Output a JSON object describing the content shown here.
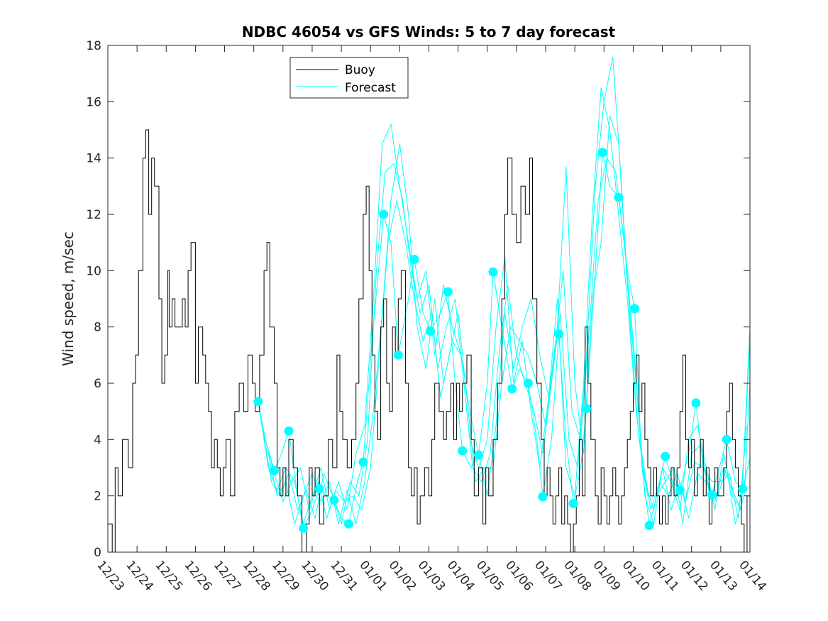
{
  "chart_data": {
    "type": "line",
    "title": "NDBC 46054 vs GFS Winds: 5 to 7 day forecast",
    "xlabel": "",
    "ylabel": "Wind speed, m/sec",
    "xlim_days": [
      0,
      22
    ],
    "ylim": [
      0,
      18
    ],
    "yticks": [
      0,
      2,
      4,
      6,
      8,
      10,
      12,
      14,
      16,
      18
    ],
    "xtick_labels": [
      "12/23",
      "12/24",
      "12/25",
      "12/26",
      "12/27",
      "12/28",
      "12/29",
      "12/30",
      "12/31",
      "01/01",
      "01/02",
      "01/03",
      "01/04",
      "01/05",
      "01/06",
      "01/07",
      "01/08",
      "01/09",
      "01/10",
      "01/11",
      "01/12",
      "01/13",
      "01/14"
    ],
    "legend": {
      "placement": "top-center",
      "entries": [
        "Buoy",
        "Forecast"
      ]
    },
    "colors": {
      "buoy": "#000000",
      "forecast": "#00ffff",
      "markers": "#00ffff"
    },
    "buoy_series": {
      "name": "Buoy",
      "x": [
        0,
        0.15,
        0.25,
        0.35,
        0.5,
        0.7,
        0.85,
        0.95,
        1.05,
        1.2,
        1.3,
        1.4,
        1.5,
        1.6,
        1.75,
        1.85,
        1.95,
        2.05,
        2.1,
        2.2,
        2.3,
        2.4,
        2.55,
        2.65,
        2.75,
        2.85,
        3,
        3.1,
        3.25,
        3.35,
        3.45,
        3.55,
        3.65,
        3.75,
        3.85,
        3.95,
        4.05,
        4.2,
        4.35,
        4.5,
        4.65,
        4.8,
        4.95,
        5.05,
        5.2,
        5.35,
        5.45,
        5.55,
        5.7,
        5.8,
        5.9,
        6,
        6.1,
        6.2,
        6.35,
        6.5,
        6.65,
        6.8,
        6.9,
        7,
        7.1,
        7.25,
        7.4,
        7.55,
        7.7,
        7.85,
        7.95,
        8.05,
        8.2,
        8.35,
        8.5,
        8.6,
        8.75,
        8.85,
        8.95,
        9.05,
        9.15,
        9.25,
        9.35,
        9.45,
        9.55,
        9.65,
        9.75,
        9.85,
        9.95,
        10.05,
        10.2,
        10.3,
        10.4,
        10.5,
        10.6,
        10.7,
        10.85,
        11,
        11.1,
        11.2,
        11.35,
        11.5,
        11.6,
        11.75,
        11.85,
        11.95,
        12.05,
        12.15,
        12.3,
        12.45,
        12.55,
        12.7,
        12.85,
        12.95,
        13.05,
        13.2,
        13.35,
        13.5,
        13.6,
        13.7,
        13.85,
        14,
        14.15,
        14.3,
        14.45,
        14.55,
        14.7,
        14.85,
        14.95,
        15.05,
        15.15,
        15.25,
        15.35,
        15.45,
        15.55,
        15.65,
        15.75,
        15.85,
        15.95,
        16.05,
        16.15,
        16.25,
        16.35,
        16.45,
        16.55,
        16.7,
        16.8,
        16.9,
        17,
        17.1,
        17.2,
        17.3,
        17.4,
        17.5,
        17.6,
        17.7,
        17.8,
        17.9,
        18,
        18.1,
        18.2,
        18.3,
        18.4,
        18.5,
        18.6,
        18.7,
        18.8,
        18.9,
        19,
        19.1,
        19.2,
        19.3,
        19.4,
        19.5,
        19.6,
        19.7,
        19.8,
        19.9,
        20,
        20.1,
        20.2,
        20.3,
        20.4,
        20.5,
        20.6,
        20.7,
        20.8,
        20.9,
        21,
        21.1,
        21.2,
        21.3,
        21.4,
        21.5,
        21.6,
        21.7,
        21.8,
        21.9,
        22
      ],
      "y": [
        1,
        0,
        3,
        2,
        4,
        3,
        6,
        7,
        10,
        14,
        15,
        12,
        14,
        13,
        9,
        6,
        7,
        10,
        8,
        9,
        8,
        8,
        9,
        8,
        10,
        11,
        6,
        8,
        7,
        6,
        5,
        3,
        4,
        3,
        2,
        3,
        4,
        2,
        5,
        6,
        5,
        7,
        6,
        5,
        7,
        10,
        11,
        8,
        6,
        3,
        2,
        3,
        2,
        4,
        3,
        2,
        0,
        1,
        3,
        2,
        3,
        1,
        2,
        4,
        3,
        7,
        5,
        4,
        3,
        4,
        6,
        9,
        12,
        13,
        10,
        7,
        5,
        4,
        8,
        9,
        6,
        5,
        8,
        7,
        9,
        10,
        6,
        3,
        2,
        3,
        1,
        2,
        3,
        2,
        4,
        6,
        5,
        4,
        5,
        6,
        4,
        6,
        5,
        6,
        7,
        4,
        2,
        3,
        1,
        3,
        2,
        4,
        6,
        9,
        12,
        14,
        12,
        11,
        13,
        12,
        14,
        9,
        6,
        4,
        2,
        3,
        2,
        1,
        2,
        3,
        1,
        2,
        1,
        0,
        1,
        2,
        4,
        2,
        8,
        6,
        4,
        2,
        1,
        3,
        2,
        1,
        2,
        3,
        2,
        1,
        2,
        3,
        4,
        5,
        6,
        7,
        5,
        6,
        4,
        3,
        2,
        3,
        2,
        1,
        2,
        1,
        2,
        3,
        2,
        3,
        5,
        7,
        4,
        3,
        4,
        2,
        3,
        4,
        2,
        3,
        1,
        2,
        3,
        2,
        2,
        3,
        5,
        6,
        4,
        3,
        2,
        1,
        0,
        2,
        2
      ]
    },
    "forecast_markers": {
      "x": [
        5.15,
        5.7,
        6.2,
        6.7,
        7.25,
        7.75,
        8.25,
        8.75,
        9.45,
        9.95,
        10.5,
        11.05,
        11.65,
        12.15,
        12.7,
        13.2,
        13.85,
        14.4,
        14.9,
        15.45,
        15.95,
        16.4,
        16.95,
        17.5,
        18.05,
        18.55,
        19.1,
        19.6,
        20.15,
        20.7,
        21.2,
        21.75
      ],
      "y": [
        5.35,
        2.9,
        4.3,
        0.85,
        2.25,
        1.85,
        1.0,
        3.2,
        12.0,
        7.0,
        10.4,
        7.85,
        9.25,
        3.6,
        3.45,
        9.95,
        5.8,
        6.0,
        1.97,
        7.75,
        1.73,
        5.1,
        14.2,
        12.6,
        8.65,
        0.95,
        3.4,
        2.2,
        5.3,
        2.05,
        4.0,
        2.25
      ]
    },
    "forecast_series": [
      {
        "name": "Forecast",
        "x": [
          5.15,
          5.4,
          5.7,
          5.95,
          6.2,
          6.5,
          6.7,
          7.0,
          7.25,
          7.5,
          7.75,
          8.0,
          8.25,
          8.55,
          8.75,
          9.05,
          9.45,
          9.7,
          9.95,
          10.3,
          10.5,
          10.8,
          11.05,
          11.4,
          11.65,
          11.9,
          12.15,
          12.45,
          12.7,
          13.0,
          13.2,
          13.5,
          13.85,
          14.1,
          14.4,
          14.7,
          14.9,
          15.2,
          15.45,
          15.7,
          15.95,
          16.2,
          16.4,
          16.7,
          16.95,
          17.2,
          17.5,
          17.8,
          18.05,
          18.3,
          18.55,
          18.8,
          19.1,
          19.35,
          19.6,
          19.9,
          20.15,
          20.4,
          20.7,
          20.95,
          21.2,
          21.5,
          21.75,
          22.0
        ],
        "y": [
          5.35,
          4.0,
          2.9,
          3.5,
          4.3,
          2.0,
          0.85,
          1.5,
          2.25,
          2.0,
          1.85,
          1.2,
          1.0,
          2.5,
          3.2,
          7.5,
          12.0,
          11.0,
          7.0,
          9.0,
          10.4,
          8.5,
          7.85,
          8.5,
          9.25,
          6.0,
          3.6,
          3.0,
          3.45,
          6.0,
          9.95,
          8.0,
          5.8,
          6.5,
          6.0,
          4.0,
          1.97,
          4.0,
          7.75,
          4.0,
          1.73,
          3.0,
          5.1,
          10.0,
          14.2,
          13.0,
          12.6,
          10.0,
          8.65,
          3.0,
          0.95,
          2.0,
          3.4,
          2.5,
          2.2,
          3.5,
          5.3,
          3.0,
          2.05,
          3.0,
          4.0,
          2.5,
          2.25,
          3.35
        ]
      },
      {
        "name": "Forecast",
        "x": [
          5.2,
          5.5,
          5.8,
          6.1,
          6.4,
          6.7,
          7.0,
          7.3,
          7.6,
          7.9,
          8.2,
          8.5,
          8.8,
          9.1,
          9.4,
          9.7,
          10.0,
          10.3,
          10.6,
          10.9,
          11.2,
          11.5,
          11.8,
          12.1,
          12.4,
          12.7,
          13.0,
          13.3,
          13.6,
          13.9,
          14.2,
          14.5,
          14.8,
          15.1,
          15.4,
          15.7,
          16.0,
          16.3,
          16.6,
          16.9,
          17.2,
          17.5,
          17.8,
          18.1,
          18.4,
          18.7,
          19.0,
          19.3,
          19.6,
          19.9,
          20.2,
          20.5,
          20.8,
          21.1,
          21.4,
          21.7,
          22.0
        ],
        "y": [
          5.0,
          3.0,
          2.2,
          3.0,
          2.5,
          1.0,
          2.0,
          3.0,
          1.5,
          2.5,
          1.5,
          3.5,
          4.5,
          9.0,
          14.5,
          15.2,
          13.0,
          11.0,
          9.0,
          10.0,
          7.0,
          9.5,
          8.0,
          7.0,
          4.0,
          3.0,
          4.0,
          8.0,
          10.5,
          6.0,
          7.5,
          5.0,
          3.0,
          5.5,
          9.0,
          3.0,
          2.0,
          6.0,
          12.0,
          16.5,
          15.0,
          12.0,
          9.0,
          5.0,
          2.5,
          1.5,
          3.0,
          2.5,
          1.5,
          4.0,
          4.5,
          3.0,
          1.5,
          3.5,
          2.0,
          1.5,
          7.5
        ]
      },
      {
        "name": "Forecast",
        "x": [
          5.3,
          5.6,
          5.9,
          6.2,
          6.5,
          6.8,
          7.1,
          7.4,
          7.7,
          8.0,
          8.3,
          8.6,
          8.9,
          9.2,
          9.5,
          9.8,
          10.1,
          10.4,
          10.7,
          11.0,
          11.3,
          11.6,
          11.9,
          12.2,
          12.5,
          12.8,
          13.1,
          13.4,
          13.7,
          14.0,
          14.3,
          14.6,
          14.9,
          15.2,
          15.5,
          15.8,
          16.1,
          16.4,
          16.7,
          17.0,
          17.3,
          17.6,
          17.9,
          18.2,
          18.5,
          18.8,
          19.1,
          19.4,
          19.7,
          20.0,
          20.3,
          20.6,
          20.9,
          21.2,
          21.5,
          21.8,
          22.0
        ],
        "y": [
          4.5,
          2.5,
          2.0,
          2.8,
          1.5,
          2.2,
          1.2,
          2.8,
          2.0,
          1.0,
          2.5,
          2.0,
          4.0,
          10.0,
          13.5,
          13.8,
          12.5,
          10.0,
          8.5,
          9.5,
          6.5,
          8.0,
          9.0,
          6.0,
          3.0,
          2.5,
          3.5,
          7.0,
          9.5,
          7.0,
          6.0,
          5.0,
          3.5,
          6.0,
          8.5,
          4.0,
          3.0,
          7.0,
          13.0,
          16.0,
          17.6,
          13.0,
          8.0,
          4.0,
          2.0,
          2.0,
          2.5,
          3.0,
          1.0,
          3.5,
          3.8,
          2.2,
          2.0,
          3.0,
          1.0,
          2.0,
          6.0
        ]
      },
      {
        "name": "Forecast",
        "x": [
          5.4,
          5.7,
          6.0,
          6.3,
          6.6,
          6.9,
          7.2,
          7.5,
          7.8,
          8.1,
          8.4,
          8.7,
          9.0,
          9.3,
          9.6,
          9.9,
          10.2,
          10.5,
          10.8,
          11.1,
          11.4,
          11.7,
          12.0,
          12.3,
          12.6,
          12.9,
          13.2,
          13.5,
          13.8,
          14.1,
          14.4,
          14.7,
          15.0,
          15.3,
          15.6,
          15.9,
          16.2,
          16.5,
          16.8,
          17.1,
          17.4,
          17.7,
          18.0,
          18.3,
          18.6,
          18.9,
          19.2,
          19.5,
          19.8,
          20.1,
          20.4,
          20.7,
          21.0,
          21.3,
          21.6,
          21.9
        ],
        "y": [
          4.0,
          2.8,
          1.8,
          2.5,
          3.0,
          1.5,
          2.5,
          1.2,
          2.2,
          1.8,
          2.0,
          1.5,
          3.0,
          7.0,
          11.0,
          12.5,
          11.0,
          9.0,
          7.5,
          8.5,
          5.5,
          7.0,
          8.5,
          5.5,
          2.5,
          3.0,
          3.0,
          6.0,
          8.0,
          7.5,
          7.0,
          6.0,
          4.5,
          7.0,
          10.0,
          5.0,
          4.0,
          8.0,
          12.5,
          14.0,
          13.5,
          11.0,
          7.5,
          3.5,
          1.5,
          2.5,
          2.0,
          2.8,
          1.8,
          3.2,
          3.0,
          2.5,
          2.5,
          2.8,
          1.2,
          4.5
        ]
      },
      {
        "name": "Forecast",
        "x": [
          5.5,
          5.8,
          6.1,
          6.4,
          6.7,
          7.0,
          7.3,
          7.6,
          7.9,
          8.2,
          8.5,
          8.8,
          9.1,
          9.4,
          9.7,
          10.0,
          10.3,
          10.6,
          10.9,
          11.2,
          11.5,
          11.8,
          12.1,
          12.4,
          12.7,
          13.0,
          13.3,
          13.6,
          13.9,
          14.2,
          14.5,
          14.8,
          15.1,
          15.4,
          15.7,
          16.0,
          16.3,
          16.6,
          16.9,
          17.2,
          17.5,
          17.8,
          18.1,
          18.4,
          18.7,
          19.0,
          19.3,
          19.6,
          19.9,
          20.2,
          20.5,
          20.8,
          21.1,
          21.4,
          21.7,
          22.0
        ],
        "y": [
          3.5,
          2.0,
          2.5,
          1.0,
          2.0,
          2.8,
          1.8,
          2.5,
          1.0,
          2.2,
          1.0,
          2.5,
          5.0,
          8.5,
          12.5,
          14.5,
          12.0,
          8.0,
          6.5,
          9.0,
          6.0,
          7.5,
          7.0,
          5.0,
          3.5,
          2.0,
          4.5,
          8.5,
          6.5,
          8.0,
          9.0,
          7.0,
          5.5,
          8.0,
          13.7,
          6.0,
          3.5,
          9.0,
          11.0,
          15.5,
          14.5,
          9.5,
          6.0,
          2.0,
          1.0,
          3.0,
          1.5,
          2.5,
          1.2,
          2.8,
          2.5,
          1.8,
          3.0,
          2.2,
          1.5,
          8.0
        ]
      }
    ]
  }
}
